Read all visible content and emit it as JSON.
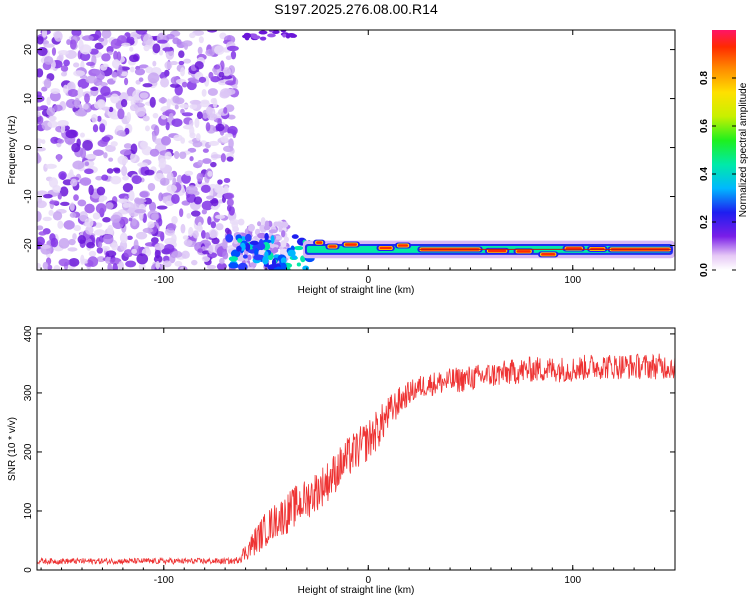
{
  "title": "S197.2025.276.08.00.R14",
  "chart_data": [
    {
      "type": "heatmap",
      "xlabel": "Height of straight line (km)",
      "ylabel": "Frequency (Hz)",
      "xlim": [
        -162,
        150
      ],
      "ylim": [
        -25,
        24
      ],
      "xticks": [
        -100,
        0,
        100
      ],
      "xtick_labels": [
        "-100",
        "0",
        "100"
      ],
      "yticks": [
        20,
        10,
        0,
        -10,
        -20
      ],
      "ytick_labels": [
        "20",
        "10",
        "0",
        "-10",
        "-20"
      ],
      "noise_region_x": [
        -162,
        -65
      ],
      "signal_line_freq": -20.8,
      "signal_line_x": [
        -30,
        148
      ],
      "colorbar": {
        "label": "Normalized spectral amplitude",
        "range": [
          0.0,
          1.0
        ],
        "ticks": [
          0.0,
          0.2,
          0.4,
          0.6,
          0.8
        ],
        "tick_labels": [
          "0.0",
          "0.2",
          "0.4",
          "0.6",
          "0.8"
        ]
      }
    },
    {
      "type": "line",
      "xlabel": "Height of straight line (km)",
      "ylabel": "SNR (10 * v/v)",
      "xlim": [
        -162,
        150
      ],
      "ylim": [
        0,
        410
      ],
      "xticks": [
        -100,
        0,
        100
      ],
      "xtick_labels": [
        "-100",
        "0",
        "100"
      ],
      "yticks": [
        0,
        100,
        200,
        300,
        400
      ],
      "ytick_labels": [
        "0",
        "100",
        "200",
        "300",
        "400"
      ],
      "series": [
        {
          "name": "SNR",
          "color": "#ee3333",
          "x": [
            -162,
            -140,
            -120,
            -100,
            -80,
            -65,
            -60,
            -55,
            -50,
            -45,
            -40,
            -35,
            -30,
            -25,
            -20,
            -15,
            -10,
            -5,
            0,
            5,
            10,
            15,
            20,
            25,
            30,
            40,
            50,
            60,
            70,
            80,
            90,
            100,
            110,
            120,
            130,
            140,
            150
          ],
          "values": [
            15,
            15,
            15,
            15,
            15,
            15,
            30,
            50,
            70,
            85,
            95,
            110,
            120,
            135,
            150,
            170,
            190,
            205,
            220,
            240,
            265,
            285,
            300,
            310,
            315,
            320,
            325,
            330,
            335,
            340,
            340,
            340,
            345,
            345,
            345,
            345,
            345
          ],
          "noise": [
            5,
            5,
            5,
            5,
            5,
            5,
            15,
            25,
            30,
            30,
            35,
            35,
            35,
            35,
            35,
            35,
            35,
            35,
            35,
            35,
            30,
            25,
            20,
            20,
            20,
            22,
            22,
            22,
            22,
            22,
            22,
            22,
            22,
            22,
            22,
            22,
            22
          ]
        }
      ]
    }
  ]
}
